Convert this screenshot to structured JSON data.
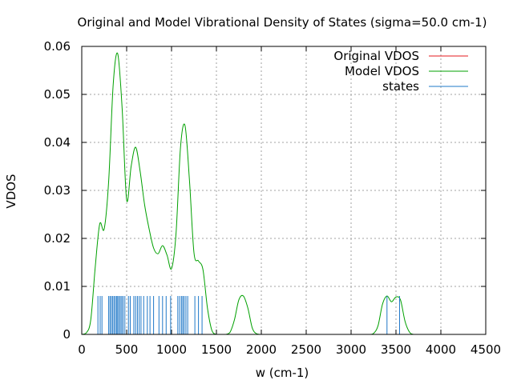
{
  "chart_data": {
    "type": "line",
    "title": "Original and Model Vibrational Density of States (sigma=50.0 cm-1)",
    "xlabel": "w (cm-1)",
    "ylabel": "VDOS",
    "xlim": [
      0,
      4500
    ],
    "ylim": [
      0,
      0.06
    ],
    "xticks": [
      "0",
      "500",
      "1000",
      "1500",
      "2000",
      "2500",
      "3000",
      "3500",
      "4000",
      "4500"
    ],
    "yticks": [
      "0",
      "0.01",
      "0.02",
      "0.03",
      "0.04",
      "0.05",
      "0.06"
    ],
    "grid": true,
    "legend_position": "top-right",
    "series": [
      {
        "name": "Original VDOS",
        "color": "#e41a1c",
        "x": [],
        "y": []
      },
      {
        "name": "Model VDOS",
        "color": "#00a000",
        "x": [
          0,
          50,
          100,
          150,
          200,
          250,
          300,
          350,
          400,
          450,
          500,
          550,
          600,
          650,
          700,
          750,
          800,
          850,
          900,
          950,
          1000,
          1050,
          1100,
          1150,
          1200,
          1250,
          1300,
          1350,
          1400,
          1450,
          1500,
          1550,
          1600,
          1650,
          1700,
          1750,
          1800,
          1850,
          1900,
          1950,
          2000,
          2100,
          2500,
          3000,
          3200,
          3250,
          3300,
          3350,
          3400,
          3450,
          3500,
          3550,
          3600,
          3650,
          3700,
          3800,
          4000,
          4300
        ],
        "y": [
          0,
          0.0003,
          0.003,
          0.014,
          0.023,
          0.022,
          0.032,
          0.052,
          0.0585,
          0.047,
          0.028,
          0.035,
          0.039,
          0.034,
          0.027,
          0.022,
          0.018,
          0.0168,
          0.0185,
          0.0165,
          0.0137,
          0.021,
          0.039,
          0.0435,
          0.032,
          0.017,
          0.0153,
          0.0135,
          0.0055,
          0.0008,
          0,
          0,
          0,
          0.0004,
          0.003,
          0.0072,
          0.008,
          0.0055,
          0.0013,
          0.0001,
          0,
          0,
          0,
          0,
          0,
          0.0002,
          0.0018,
          0.0063,
          0.008,
          0.0068,
          0.0078,
          0.0072,
          0.0028,
          0.0005,
          0,
          0,
          0,
          0
        ]
      },
      {
        "name": "states",
        "color": "#1f78c8",
        "type": "impulse",
        "height": 0.008,
        "x": [
          180,
          205,
          225,
          300,
          315,
          330,
          345,
          360,
          375,
          390,
          400,
          415,
          430,
          445,
          460,
          480,
          520,
          540,
          580,
          600,
          620,
          640,
          660,
          690,
          730,
          760,
          800,
          860,
          900,
          940,
          990,
          1070,
          1090,
          1110,
          1125,
          1140,
          1160,
          1180,
          1260,
          1300,
          1340,
          3400,
          3540
        ]
      }
    ]
  }
}
